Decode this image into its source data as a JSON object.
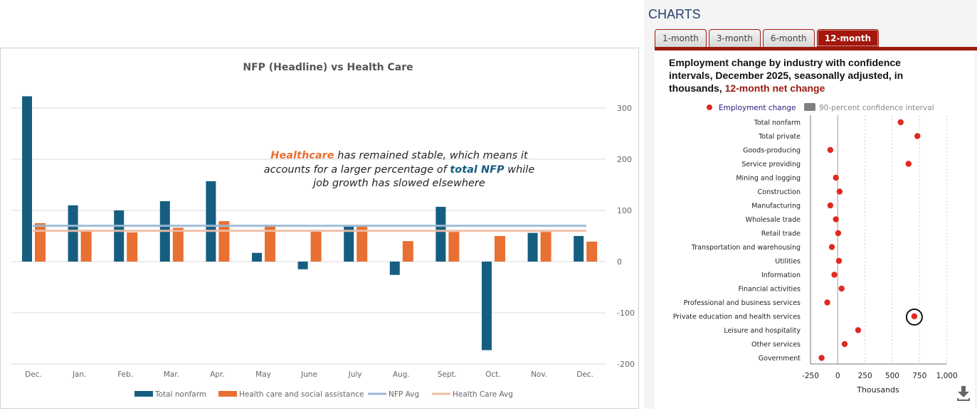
{
  "left_chart": {
    "chart_data": {
      "type": "bar",
      "title": "NFP (Headline) vs Health Care",
      "categories": [
        "Dec.",
        "Jan.",
        "Feb.",
        "Mar.",
        "Apr.",
        "May",
        "June",
        "July",
        "Aug.",
        "Sept.",
        "Oct.",
        "Nov.",
        "Dec."
      ],
      "series": [
        {
          "name": "Total nonfarm",
          "color": "#165e80",
          "values": [
            323,
            110,
            100,
            118,
            157,
            17,
            -15,
            71,
            -26,
            107,
            -173,
            56,
            50
          ]
        },
        {
          "name": "Health care and social assistance",
          "color": "#e87032",
          "values": [
            75,
            62,
            57,
            66,
            79,
            72,
            59,
            70,
            40,
            58,
            50,
            58,
            39
          ]
        }
      ],
      "lines": [
        {
          "name": "NFP Avg",
          "color": "#9dbad8",
          "value": 70
        },
        {
          "name": "Health Care Avg",
          "color": "#efbda5",
          "value": 60
        }
      ],
      "yticks": [
        300,
        200,
        100,
        0,
        -100,
        -200
      ],
      "ylim": [
        -200,
        330
      ],
      "y_axis_side": "right",
      "grid": true,
      "legend": "bottom"
    },
    "annotation": {
      "part1": "Healthcare",
      "part2": " has remained stable, which means it",
      "part3": "accounts for a larger percentage of ",
      "part4": "total NFP",
      "part5": " while",
      "part6": "job growth has slowed elsewhere"
    }
  },
  "right": {
    "heading": "CHARTS",
    "tabs": [
      {
        "label": "1-month"
      },
      {
        "label": "3-month"
      },
      {
        "label": "6-month"
      },
      {
        "label": "12-month",
        "active": true
      }
    ],
    "title_main": "Employment change by industry with confidence intervals, December 2025, seasonally adjusted, in thousands, ",
    "title_highlight": "12-month net change",
    "chart_data": {
      "type": "scatter",
      "legend": [
        "Employment change",
        "90-percent confidence interval"
      ],
      "categories": [
        "Total nonfarm",
        "Total private",
        "Goods-producing",
        "Service providing",
        "Mining and logging",
        "Construction",
        "Manufacturing",
        "Wholesale trade",
        "Retail trade",
        "Transportation and warehousing",
        "Utilities",
        "Information",
        "Financial activities",
        "Professional and business services",
        "Private education and health services",
        "Leisure and hospitality",
        "Other services",
        "Government"
      ],
      "values": [
        577,
        730,
        -68,
        649,
        -17,
        17,
        -68,
        -17,
        4,
        -54,
        11,
        -31,
        35,
        -96,
        702,
        187,
        63,
        -148
      ],
      "xticks": [
        "-250",
        "0",
        "250",
        "500",
        "750",
        "1,000"
      ],
      "xlim": [
        -250,
        1000
      ],
      "xlabel": "Thousands",
      "highlighted": "Private education and health services",
      "point_color": "#e02a20"
    },
    "download_icon": "download-icon"
  }
}
